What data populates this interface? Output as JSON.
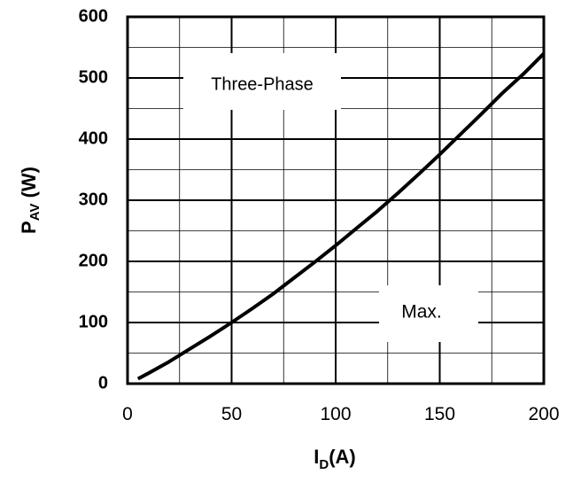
{
  "chart_data": {
    "type": "line",
    "xlabel": {
      "main": "I",
      "sub": "D",
      "suffix": "(A)"
    },
    "ylabel": {
      "main": "P",
      "sub": "AV",
      "suffix": " (W)"
    },
    "xlim": [
      0,
      200
    ],
    "ylim": [
      0,
      600
    ],
    "x_ticks": [
      "0",
      "50",
      "100",
      "150",
      "200"
    ],
    "y_ticks": [
      "0",
      "100",
      "200",
      "300",
      "400",
      "500",
      "600"
    ],
    "grid": true,
    "annotations": [
      "Three-Phase",
      "Max."
    ],
    "series": [
      {
        "color": "#000000",
        "x": [
          5,
          10,
          20,
          30,
          40,
          50,
          60,
          70,
          80,
          90,
          100,
          110,
          120,
          130,
          140,
          150,
          160,
          170,
          180,
          190,
          200
        ],
        "y": [
          8,
          17,
          36,
          57,
          78,
          100,
          123,
          147,
          173,
          199,
          226,
          254,
          282,
          312,
          343,
          375,
          408,
          441,
          475,
          506,
          540
        ]
      }
    ]
  }
}
